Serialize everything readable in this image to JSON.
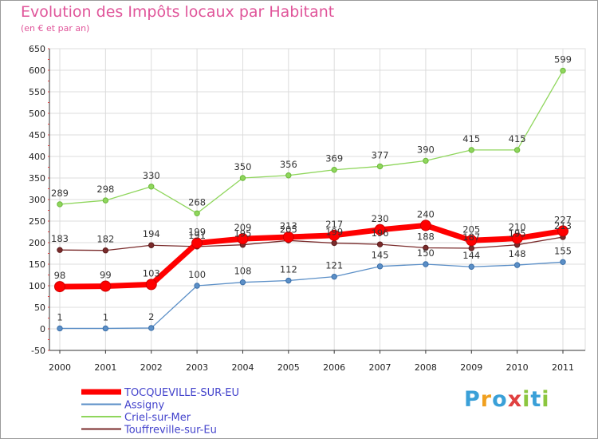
{
  "chart_data": {
    "type": "line",
    "title": "Evolution des Impôts locaux par Habitant",
    "subtitle": "(en € et par an)",
    "categories": [
      "2000",
      "2001",
      "2002",
      "2003",
      "2004",
      "2005",
      "2006",
      "2007",
      "2008",
      "2009",
      "2010",
      "2011"
    ],
    "ylim": [
      -50,
      650
    ],
    "yticks": [
      -50,
      0,
      50,
      100,
      150,
      200,
      250,
      300,
      350,
      400,
      450,
      500,
      550,
      600,
      650
    ],
    "grid": true,
    "legend_position": "bottom-left",
    "series": [
      {
        "name": "TOCQUEVILLE-SUR-EU",
        "color": "#ff0000",
        "values": [
          98,
          99,
          103,
          199,
          209,
          213,
          217,
          230,
          240,
          205,
          210,
          227
        ]
      },
      {
        "name": "Assigny",
        "color": "#5b8fc7",
        "values": [
          1,
          1,
          2,
          100,
          108,
          112,
          121,
          145,
          150,
          144,
          148,
          155
        ]
      },
      {
        "name": "Criel-sur-Mer",
        "color": "#8fd65c",
        "values": [
          289,
          298,
          330,
          268,
          350,
          356,
          369,
          377,
          390,
          415,
          415,
          599
        ]
      },
      {
        "name": "Touffreville-sur-Eu",
        "color": "#7a2b2b",
        "values": [
          183,
          182,
          194,
          191,
          195,
          205,
          199,
          196,
          188,
          187,
          195,
          213
        ]
      }
    ]
  },
  "logo": {
    "text": "Proxiti"
  }
}
